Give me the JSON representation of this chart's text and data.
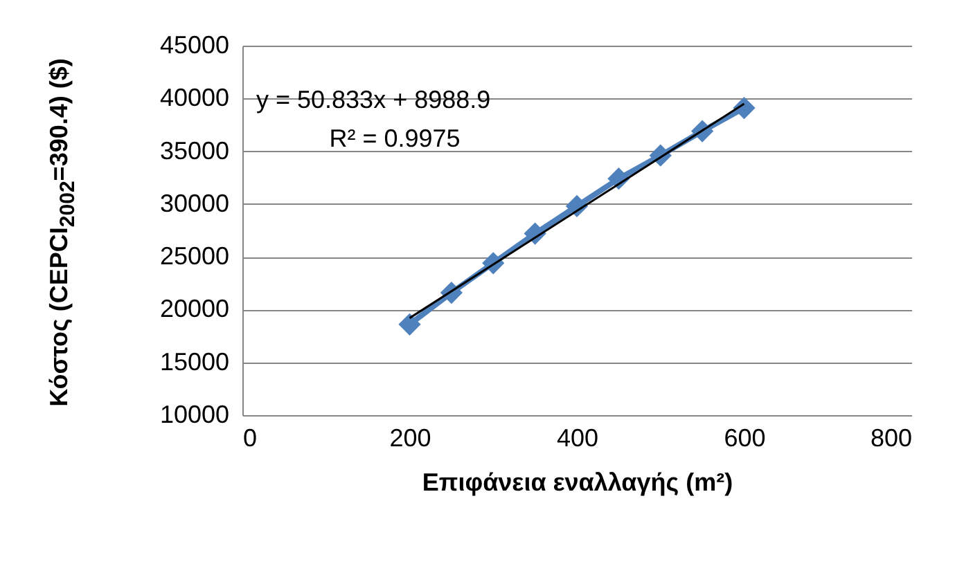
{
  "chart_data": {
    "type": "line",
    "xlabel": "Επιφάνεια εναλλαγής (m²)",
    "ylabel": "Κόστος (CEPCI$_{2002}$=390.4) ($)",
    "x": [
      200,
      250,
      300,
      350,
      400,
      450,
      500,
      550,
      600
    ],
    "series": [
      {
        "color": "#4f81bd",
        "marker": "diamond",
        "values": [
          18600,
          21600,
          24400,
          27200,
          29800,
          32400,
          34600,
          36900,
          39100
        ]
      },
      {
        "type": "line",
        "color": "#000000",
        "marker": "none",
        "x": [
          200,
          600
        ],
        "values": [
          19200,
          39500
        ]
      }
    ],
    "xlim": [
      0,
      800
    ],
    "xticks": [
      0,
      200,
      400,
      600,
      800
    ],
    "ylim": [
      10000,
      45000
    ],
    "yticks": [
      10000,
      15000,
      20000,
      25000,
      30000,
      35000,
      40000,
      45000
    ],
    "grid": "y",
    "annotations": [
      "y = 50.833x + 8988.9",
      "R² = 0.9975"
    ]
  }
}
